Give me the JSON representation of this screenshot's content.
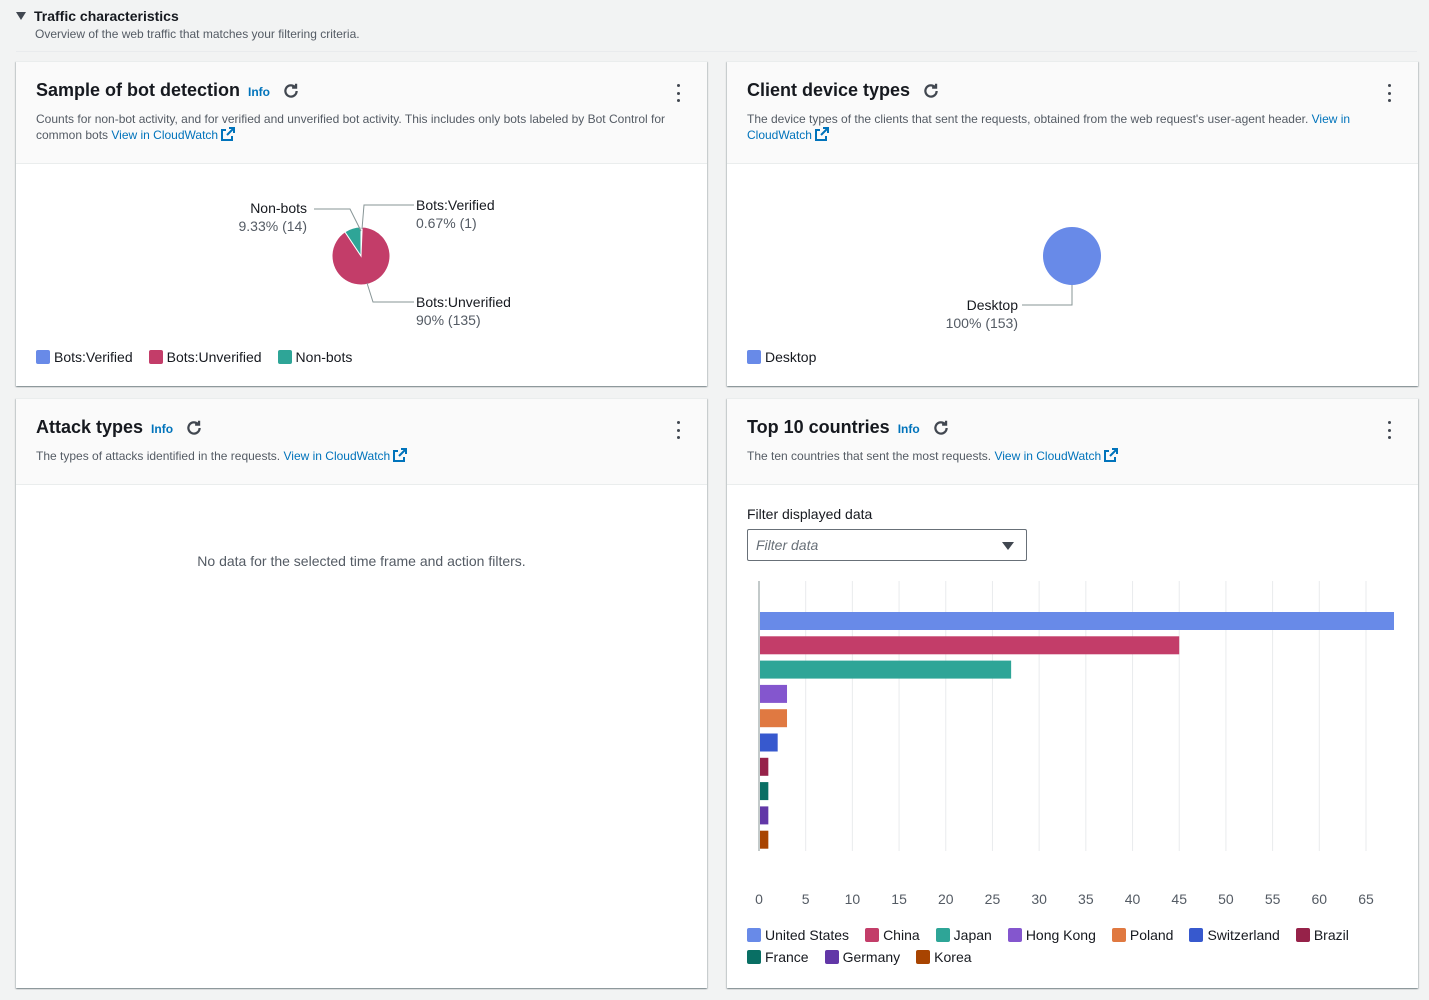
{
  "section": {
    "title": "Traffic characteristics",
    "description": "Overview of the web traffic that matches your filtering criteria."
  },
  "common": {
    "info": "Info",
    "view_in_cloudwatch": "View in CloudWatch"
  },
  "bot_panel": {
    "title": "Sample of bot detection",
    "description": "Counts for non-bot activity, and for verified and unverified bot activity. This includes only bots labeled by Bot Control for common bots ",
    "chart_data": {
      "type": "pie",
      "slices": [
        {
          "name": "Bots:Verified",
          "percent": "0.67%",
          "count": "(1)",
          "value": 1,
          "color": "#688ae8"
        },
        {
          "name": "Bots:Unverified",
          "percent": "90%",
          "count": "(135)",
          "value": 135,
          "color": "#c33d69"
        },
        {
          "name": "Non-bots",
          "percent": "9.33%",
          "count": "(14)",
          "value": 14,
          "color": "#2ea597"
        }
      ],
      "legend": [
        "Bots:Verified",
        "Bots:Unverified",
        "Non-bots"
      ]
    }
  },
  "device_panel": {
    "title": "Client device types",
    "description": "The device types of the clients that sent the requests, obtained from the web request's user-agent header. ",
    "chart_data": {
      "type": "pie",
      "slices": [
        {
          "name": "Desktop",
          "percent": "100%",
          "count": "(153)",
          "value": 153,
          "color": "#688ae8"
        }
      ],
      "legend": [
        "Desktop"
      ]
    }
  },
  "attack_panel": {
    "title": "Attack types",
    "description": "The types of attacks identified in the requests. ",
    "empty_message": "No data for the selected time frame and action filters."
  },
  "countries_panel": {
    "title": "Top 10 countries",
    "description": "The ten countries that sent the most requests. ",
    "filter_label": "Filter displayed data",
    "filter_placeholder": "Filter data",
    "chart_data": {
      "type": "bar",
      "orientation": "horizontal",
      "categories": [
        "United States",
        "China",
        "Japan",
        "Hong Kong",
        "Poland",
        "Switzerland",
        "Brazil",
        "France",
        "Germany",
        "Korea"
      ],
      "values": [
        68,
        45,
        27,
        3,
        3,
        2,
        1,
        1,
        1,
        1
      ],
      "colors": [
        "#688ae8",
        "#c33d69",
        "#2ea597",
        "#8456ce",
        "#e07941",
        "#3759ce",
        "#962249",
        "#096f64",
        "#6237a7",
        "#a84401"
      ],
      "xlim": [
        0,
        68
      ],
      "xticks": [
        0,
        5,
        10,
        15,
        20,
        25,
        30,
        35,
        40,
        45,
        50,
        55,
        60,
        65
      ],
      "grid": true
    }
  }
}
